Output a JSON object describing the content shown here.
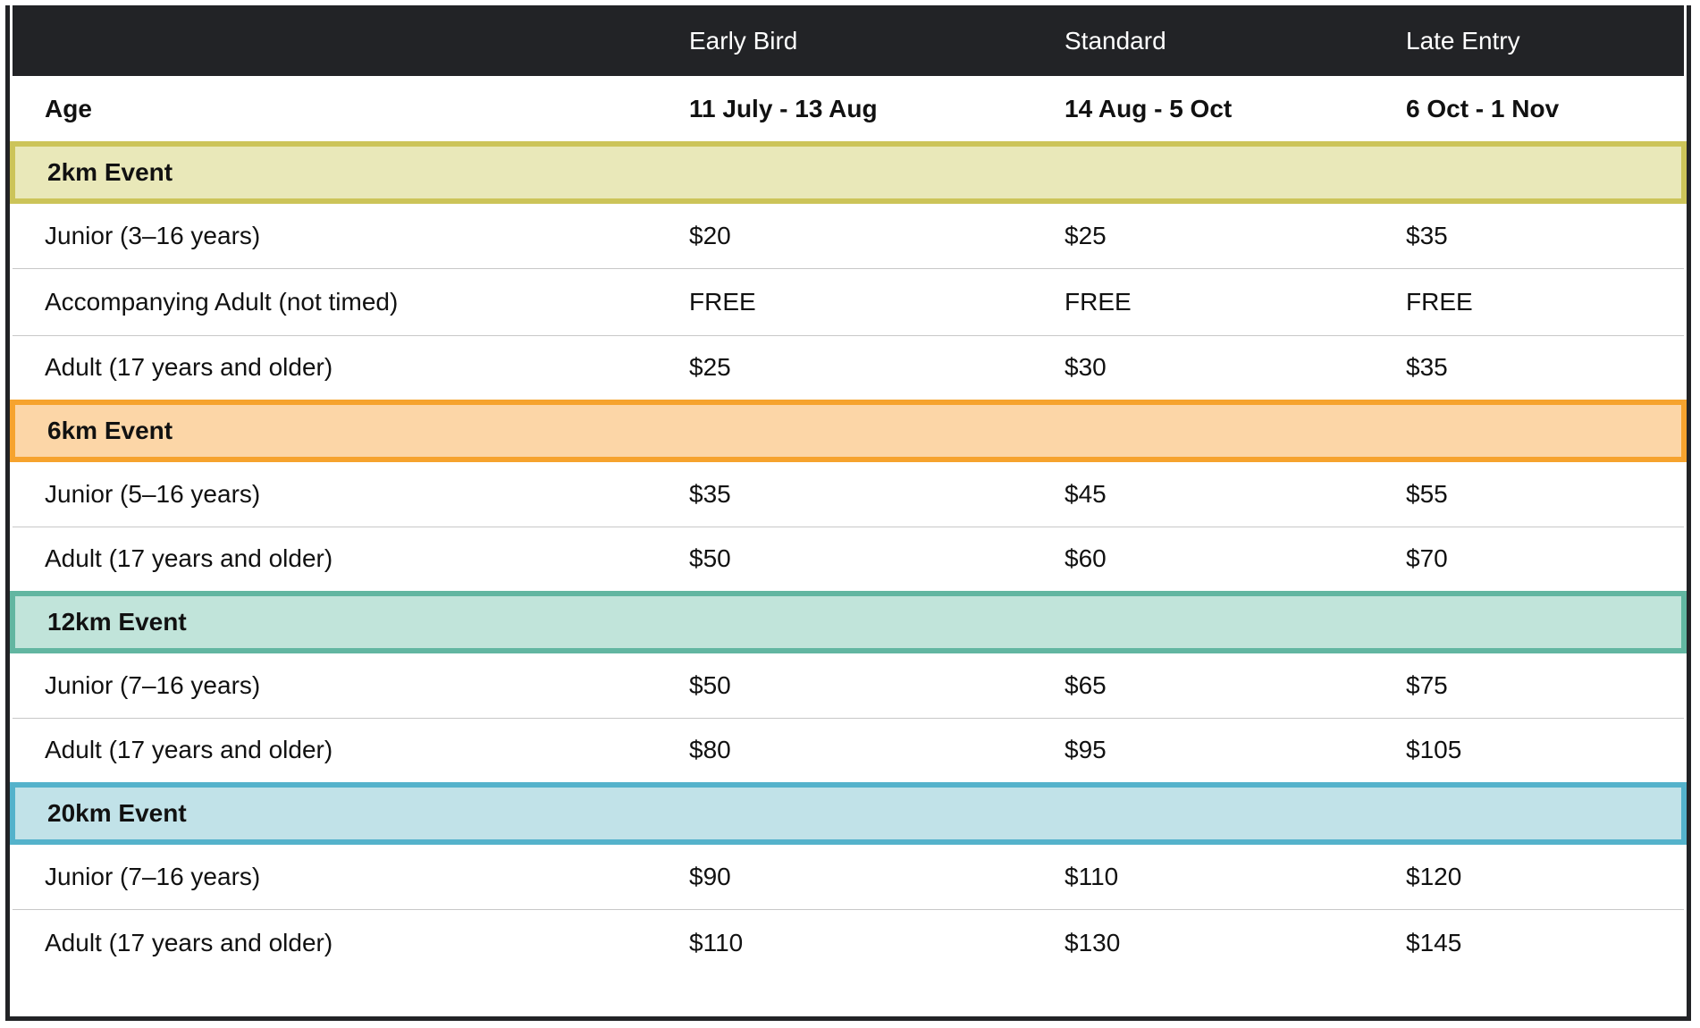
{
  "table": {
    "header": {
      "col1": "",
      "col2": "Early Bird",
      "col3": "Standard",
      "col4": "Late Entry"
    },
    "subheader": {
      "col1": "Age",
      "col2": "11 July - 13 Aug",
      "col3": "14 Aug - 5 Oct",
      "col4": "6 Oct - 1 Nov"
    },
    "groups": [
      {
        "title": "2km Event",
        "color": "#ccc459",
        "rows": [
          {
            "age": "Junior (3–16 years)",
            "early": "$20",
            "standard": "$25",
            "late": "$35"
          },
          {
            "age": "Accompanying Adult (not timed)",
            "early": "FREE",
            "standard": "FREE",
            "late": "FREE"
          },
          {
            "age": "Adult (17 years and older)",
            "early": "$25",
            "standard": "$30",
            "late": "$35"
          }
        ]
      },
      {
        "title": "6km Event",
        "color": "#f6a32e",
        "rows": [
          {
            "age": "Junior (5–16 years)",
            "early": "$35",
            "standard": "$45",
            "late": "$55"
          },
          {
            "age": "Adult (17 years and older)",
            "early": "$50",
            "standard": "$60",
            "late": "$70"
          }
        ]
      },
      {
        "title": "12km Event",
        "color": "#62b6a1",
        "rows": [
          {
            "age": "Junior (7–16 years)",
            "early": "$50",
            "standard": "$65",
            "late": "$75"
          },
          {
            "age": "Adult (17 years and older)",
            "early": "$80",
            "standard": "$95",
            "late": "$105"
          }
        ]
      },
      {
        "title": "20km Event",
        "color": "#54b2cb",
        "rows": [
          {
            "age": "Junior (7–16 years)",
            "early": "$90",
            "standard": "$110",
            "late": "$120"
          },
          {
            "age": "Adult (17 years and older)",
            "early": "$110",
            "standard": "$130",
            "late": "$145"
          }
        ]
      }
    ]
  }
}
